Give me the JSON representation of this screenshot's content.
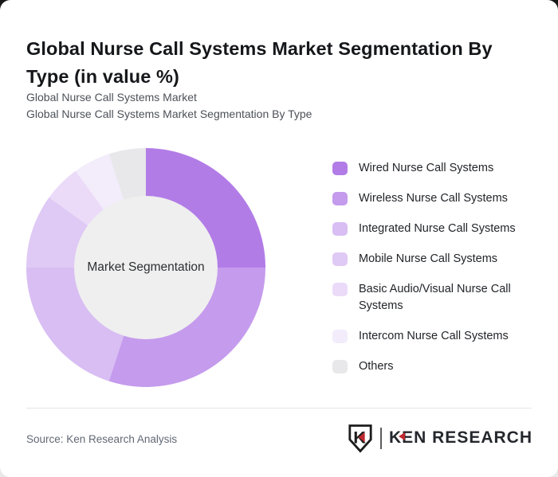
{
  "header": {
    "title": "Global Nurse Call Systems Market Segmentation By Type (in value %)",
    "subtitle_line1": "Global Nurse Call Systems Market",
    "subtitle_line2": "Global Nurse Call Systems Market Segmentation By Type"
  },
  "chart_data": {
    "type": "pie",
    "variant": "donut",
    "title": "Global Nurse Call Systems Market Segmentation By Type (in value %)",
    "center_label": "Market Segmentation",
    "unit": "% of value (estimated from slice angles; no numeric labels shown)",
    "start_angle_deg": 0,
    "direction": "clockwise",
    "inner_radius_ratio": 0.6,
    "legend_position": "right",
    "labels": [
      "Wired Nurse Call Systems",
      "Wireless Nurse Call Systems",
      "Integrated Nurse Call Systems",
      "Mobile Nurse Call Systems",
      "Basic Audio/Visual Nurse Call Systems",
      "Intercom Nurse Call Systems",
      "Others"
    ],
    "values": [
      25,
      30,
      20,
      10,
      5,
      5,
      5
    ],
    "colors": [
      "#b27ce7",
      "#c59bed",
      "#d8bef3",
      "#dfc9f5",
      "#ebdbf8",
      "#f2ecfb",
      "#e8e7ea"
    ],
    "center_circle_color": "#efefef"
  },
  "footer": {
    "source": "Source: Ken Research Analysis",
    "logo_text": "KEN RESEARCH",
    "logo_shield_letter": "K",
    "logo_accent_color": "#c0272d"
  }
}
